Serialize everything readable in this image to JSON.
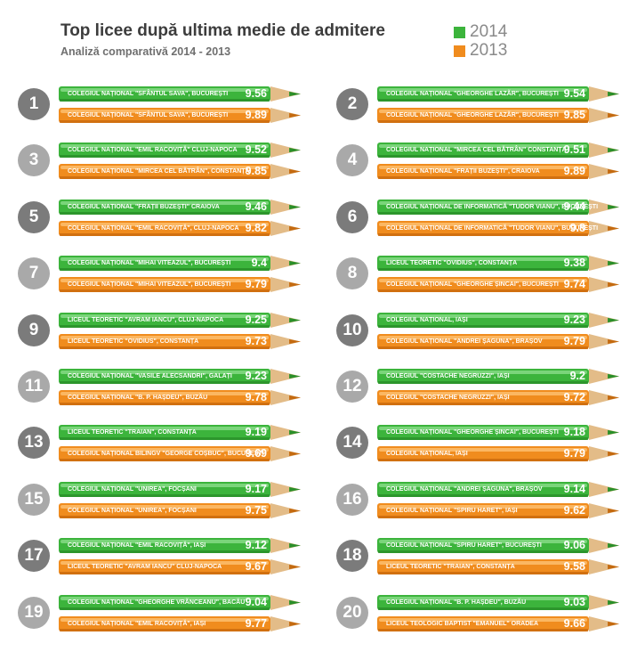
{
  "header": {
    "title": "Top licee după ultima medie de admitere",
    "subtitle": "Analiză comparativă 2014 - 2013"
  },
  "legend": [
    {
      "label": "2014",
      "color": "#3cb43c"
    },
    {
      "label": "2013",
      "color": "#f08c1e"
    }
  ],
  "chart_data": {
    "type": "bar",
    "title": "Top licee după ultima medie de admitere",
    "subtitle": "Analiză comparativă 2014 - 2013",
    "series": [
      {
        "name": "2014",
        "color": "#3cb43c"
      },
      {
        "name": "2013",
        "color": "#f08c1e"
      }
    ],
    "rankings": [
      {
        "rank": "1",
        "2014": {
          "school": "COLEGIUL NAȚIONAL \"SFÂNTUL SAVA\", BUCUREȘTI",
          "value": "9.56"
        },
        "2013": {
          "school": "COLEGIUL NAȚIONAL \"SFÂNTUL SAVA\", BUCUREȘTI",
          "value": "9.89"
        }
      },
      {
        "rank": "2",
        "2014": {
          "school": "COLEGIUL NAȚIONAL \"GHEORGHE LAZĂR\", BUCUREȘTI",
          "value": "9.54"
        },
        "2013": {
          "school": "COLEGIUL NAȚIONAL \"GHEORGHE LAZĂR\", BUCUREȘTI",
          "value": "9.85"
        }
      },
      {
        "rank": "3",
        "2014": {
          "school": "COLEGIUL NAȚIONAL \"EMIL RACOVIȚĂ\" CLUJ-NAPOCA",
          "value": "9.52"
        },
        "2013": {
          "school": "COLEGIUL NAȚIONAL \"MIRCEA CEL BĂTRÂN\", CONSTANȚA",
          "value": "9.85"
        }
      },
      {
        "rank": "4",
        "2014": {
          "school": "COLEGIUL NAȚIONAL \"MIRCEA CEL BĂTRÂN\" CONSTANȚA",
          "value": "9.51"
        },
        "2013": {
          "school": "COLEGIUL NAȚIONAL \"FRAȚII BUZEȘTI\", CRAIOVA",
          "value": "9.89"
        }
      },
      {
        "rank": "5",
        "2014": {
          "school": "COLEGIUL NAȚIONAL \"FRAȚII BUZEȘTI\" CRAIOVA",
          "value": "9.46"
        },
        "2013": {
          "school": "COLEGIUL NAȚIONAL \"EMIL RACOVIȚĂ\", CLUJ-NAPOCA",
          "value": "9.82"
        }
      },
      {
        "rank": "6",
        "2014": {
          "school": "COLEGIUL NAȚIONAL DE INFORMATICĂ \"TUDOR VIANU\", BUCUREȘTI",
          "value": "9.44"
        },
        "2013": {
          "school": "COLEGIUL NAȚIONAL DE INFORMATICĂ \"TUDOR VIANU\", BUCUREȘTI",
          "value": "9.8"
        }
      },
      {
        "rank": "7",
        "2014": {
          "school": "COLEGIUL NAȚIONAL \"MIHAI VITEAZUL\", BUCUREȘTI",
          "value": "9.4"
        },
        "2013": {
          "school": "COLEGIUL NAȚIONAL \"MIHAI VITEAZUL\", BUCUREȘTI",
          "value": "9.79"
        }
      },
      {
        "rank": "8",
        "2014": {
          "school": "LICEUL TEORETIC \"OVIDIUS\", CONSTANȚA",
          "value": "9.38"
        },
        "2013": {
          "school": "COLEGIUL NAȚIONAL \"GHEORGHE ȘINCAI\", BUCUREȘTI",
          "value": "9.74"
        }
      },
      {
        "rank": "9",
        "2014": {
          "school": "LICEUL TEORETIC \"AVRAM IANCU\", CLUJ-NAPOCA",
          "value": "9.25"
        },
        "2013": {
          "school": "LICEUL TEORETIC \"OVIDIUS\", CONSTANȚA",
          "value": "9.73"
        }
      },
      {
        "rank": "10",
        "2014": {
          "school": "COLEGIUL NAȚIONAL, IAȘI",
          "value": "9.23"
        },
        "2013": {
          "school": "COLEGIUL NAȚIONAL \"ANDREI ȘAGUNA\", BRAȘOV",
          "value": "9.79"
        }
      },
      {
        "rank": "11",
        "2014": {
          "school": "COLEGIUL NAȚIONAL \"VASILE ALECSANDRI\", GALAȚI",
          "value": "9.23"
        },
        "2013": {
          "school": "COLEGIUL NAȚIONAL \"B. P. HAȘDEU\", BUZĂU",
          "value": "9.78"
        }
      },
      {
        "rank": "12",
        "2014": {
          "school": "COLEGIUL \"COSTACHE NEGRUZZI\", IAȘI",
          "value": "9.2"
        },
        "2013": {
          "school": "COLEGIUL \"COSTACHE NEGRUZZI\", IAȘI",
          "value": "9.72"
        }
      },
      {
        "rank": "13",
        "2014": {
          "school": "LICEUL TEORETIC \"TRAIAN\", CONSTANȚA",
          "value": "9.19"
        },
        "2013": {
          "school": "COLEGIUL NAȚIONAL BILINGV \"GEORGE COȘBUC\", BUCUREȘTI",
          "value": "9.69"
        }
      },
      {
        "rank": "14",
        "2014": {
          "school": "COLEGIUL NAȚIONAL \"GHEORGHE ȘINCAI\", BUCUREȘTI",
          "value": "9.18"
        },
        "2013": {
          "school": "COLEGIUL NAȚIONAL, IAȘI",
          "value": "9.79"
        }
      },
      {
        "rank": "15",
        "2014": {
          "school": "COLEGIUL NAȚIONAL \"UNIREA\", FOCȘANI",
          "value": "9.17"
        },
        "2013": {
          "school": "COLEGIUL NAȚIONAL \"UNIREA\", FOCȘANI",
          "value": "9.75"
        }
      },
      {
        "rank": "16",
        "2014": {
          "school": "COLEGIUL NAȚIONAL \"ANDREI ȘAGUNA\", BRAȘOV",
          "value": "9.14"
        },
        "2013": {
          "school": "COLEGIUL NAȚIONAL \"SPIRU HARET\", IAȘI",
          "value": "9.62"
        }
      },
      {
        "rank": "17",
        "2014": {
          "school": "COLEGIUL NAȚIONAL \"EMIL RACOVIȚĂ\", IAȘI",
          "value": "9.12"
        },
        "2013": {
          "school": "LICEUL TEORETIC \"AVRAM IANCU\" CLUJ-NAPOCA",
          "value": "9.67"
        }
      },
      {
        "rank": "18",
        "2014": {
          "school": "COLEGIUL NAȚIONAL \"SPIRU HARET\", BUCUREȘTI",
          "value": "9.06"
        },
        "2013": {
          "school": "LICEUL TEORETIC \"TRAIAN\", CONSTANȚA",
          "value": "9.58"
        }
      },
      {
        "rank": "19",
        "2014": {
          "school": "COLEGIUL NAȚIONAL \"GHEORGHE VRĂNCEANU\", BACĂU",
          "value": "9.04"
        },
        "2013": {
          "school": "COLEGIUL NAȚIONAL \"EMIL RACOVIȚĂ\", IAȘI",
          "value": "9.77"
        }
      },
      {
        "rank": "20",
        "2014": {
          "school": "COLEGIUL NAȚIONAL \"B. P. HAȘDEU\", BUZĂU",
          "value": "9.03"
        },
        "2013": {
          "school": "LICEUL TEOLOGIC BAPTIST \"EMANUEL\" ORADEA",
          "value": "9.66"
        }
      }
    ]
  }
}
